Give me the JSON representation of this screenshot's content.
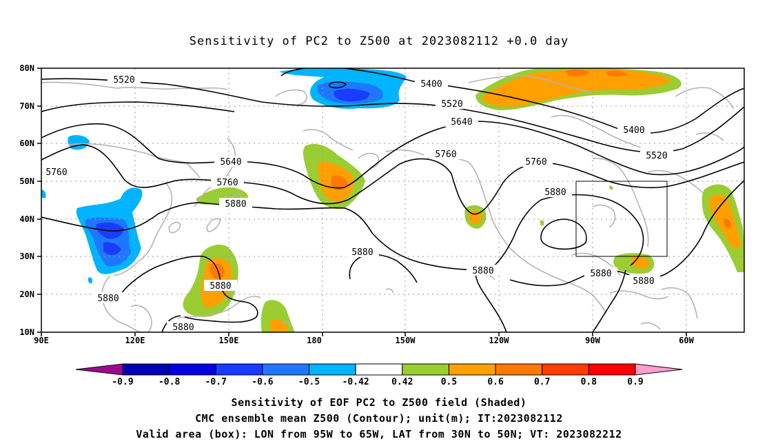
{
  "title": "Sensitivity of PC2 to Z500 at 2023082112 +0.0 day",
  "map": {
    "lat_labels": [
      "80N",
      "70N",
      "60N",
      "50N",
      "40N",
      "30N",
      "20N",
      "10N"
    ],
    "lon_labels": [
      "90E",
      "120E",
      "150E",
      "180",
      "150W",
      "120W",
      "90W",
      "60W"
    ],
    "contour_labels": {
      "c5520a": "5520",
      "c5520b": "5520",
      "c5520c": "5520",
      "c5400a": "5400",
      "c5400b": "5400",
      "c5640a": "5640",
      "c5640b": "5640",
      "c5760a": "5760",
      "c5760b": "5760",
      "c5760c": "5760",
      "c5760d": "5760",
      "c5880a": "5880",
      "c5880b": "5880",
      "c5880c": "5880",
      "c5880d": "5880",
      "c5880e": "5880",
      "c5880f": "5880",
      "c5880g": "5880",
      "c5880h": "5880",
      "c5880i": "5880"
    },
    "valid_box": {
      "lon_from": "95W",
      "lon_to": "65W",
      "lat_from": "30N",
      "lat_to": "50N"
    }
  },
  "colorbar": {
    "labels": [
      "-0.9",
      "-0.8",
      "-0.7",
      "-0.6",
      "-0.5",
      "-0.42",
      "0.42",
      "0.5",
      "0.6",
      "0.7",
      "0.8",
      "0.9"
    ],
    "colors": [
      "#9e0a8e",
      "#0000b4",
      "#0000e0",
      "#1a3cff",
      "#1e78ff",
      "#00b4ff",
      "#ffffff",
      "#9acd32",
      "#ffa000",
      "#ff7800",
      "#ff3c00",
      "#ff0000",
      "#ff9ecf"
    ]
  },
  "captions": {
    "line1": "Sensitivity of EOF PC2 to Z500 field (Shaded)",
    "line2": "CMC ensemble mean Z500 (Contour); unit(m); IT:2023082112",
    "line3": "Valid area (box): LON from 95W to 65W, LAT from 30N to 50N; VT: 2023082212"
  }
}
